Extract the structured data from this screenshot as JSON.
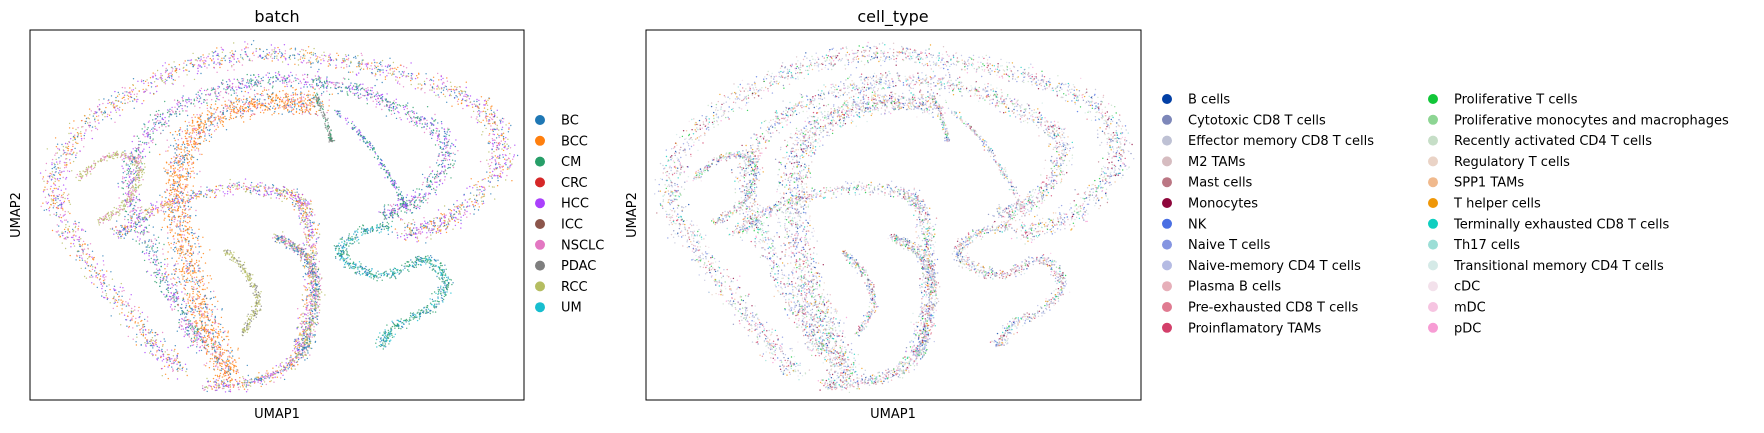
{
  "chart_data": [
    {
      "type": "scatter",
      "title": "batch",
      "xlabel": "UMAP1",
      "ylabel": "UMAP2",
      "grid": false,
      "legend_position": "right",
      "legend": [
        {
          "name": "BC",
          "color": "#1f77b4"
        },
        {
          "name": "BCC",
          "color": "#ff7f0e"
        },
        {
          "name": "CM",
          "color": "#279e68"
        },
        {
          "name": "CRC",
          "color": "#d62728"
        },
        {
          "name": "HCC",
          "color": "#aa40fc"
        },
        {
          "name": "ICC",
          "color": "#8c564b"
        },
        {
          "name": "NSCLC",
          "color": "#e377c2"
        },
        {
          "name": "PDAC",
          "color": "#7f7f7f"
        },
        {
          "name": "RCC",
          "color": "#b5bd61"
        },
        {
          "name": "UM",
          "color": "#17becf"
        }
      ]
    },
    {
      "type": "scatter",
      "title": "cell_type",
      "xlabel": "UMAP1",
      "ylabel": "UMAP2",
      "grid": false,
      "legend_position": "right",
      "legend": [
        {
          "name": "B cells",
          "color": "#023fa5"
        },
        {
          "name": "Cytotoxic CD8 T cells",
          "color": "#7d87b9"
        },
        {
          "name": "Effector memory CD8 T cells",
          "color": "#bec1d4"
        },
        {
          "name": "M2 TAMs",
          "color": "#d6bcc0"
        },
        {
          "name": "Mast cells",
          "color": "#bb7784"
        },
        {
          "name": "Monocytes",
          "color": "#8e063b"
        },
        {
          "name": "NK",
          "color": "#4a6fe3"
        },
        {
          "name": "Naive T cells",
          "color": "#8595e1"
        },
        {
          "name": "Naive-memory CD4 T cells",
          "color": "#b5bbe3"
        },
        {
          "name": "Plasma B cells",
          "color": "#e6afb9"
        },
        {
          "name": "Pre-exhausted CD8 T cells",
          "color": "#e07b91"
        },
        {
          "name": "Proinflamatory TAMs",
          "color": "#d33f6a"
        },
        {
          "name": "Proliferative T cells",
          "color": "#11c638"
        },
        {
          "name": "Proliferative monocytes and macrophages",
          "color": "#8dd593"
        },
        {
          "name": "Recently activated CD4 T cells",
          "color": "#c6dec7"
        },
        {
          "name": "Regulatory T cells",
          "color": "#ead3c6"
        },
        {
          "name": "SPP1 TAMs",
          "color": "#f0b98d"
        },
        {
          "name": "T helper cells",
          "color": "#ef9708"
        },
        {
          "name": "Terminally exhausted CD8 T cells",
          "color": "#0fcfc0"
        },
        {
          "name": "Th17 cells",
          "color": "#9cded6"
        },
        {
          "name": "Transitional memory CD4 T cells",
          "color": "#d5eae7"
        },
        {
          "name": "cDC",
          "color": "#f3e1eb"
        },
        {
          "name": "mDC",
          "color": "#f6c4e1"
        },
        {
          "name": "pDC",
          "color": "#f79cd4"
        }
      ]
    }
  ]
}
